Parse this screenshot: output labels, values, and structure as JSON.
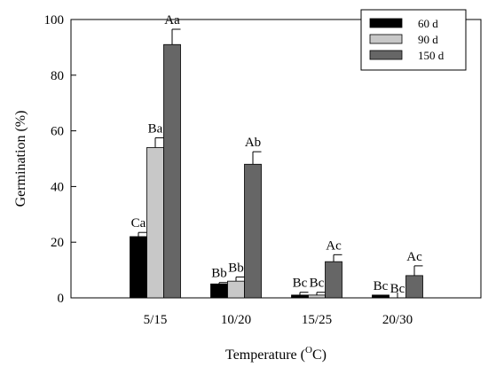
{
  "chart_data": {
    "type": "bar",
    "categories": [
      "5/15",
      "10/20",
      "15/25",
      "20/30"
    ],
    "series": [
      {
        "name": "60 d",
        "color": "#000000",
        "values": [
          22,
          5,
          1,
          1
        ],
        "errors": [
          1.5,
          0.5,
          1,
          0
        ],
        "labels": [
          "Ca",
          "Bb",
          "Bc",
          "Bc"
        ]
      },
      {
        "name": "90 d",
        "color": "#c8c8c8",
        "values": [
          54,
          6,
          1,
          0
        ],
        "errors": [
          3.5,
          1.5,
          1,
          0
        ],
        "labels": [
          "Ba",
          "Bb",
          "Bc",
          "Bc"
        ]
      },
      {
        "name": "150 d",
        "color": "#666666",
        "values": [
          91,
          48,
          13,
          8
        ],
        "errors": [
          5.5,
          4.5,
          2.5,
          3.5
        ],
        "labels": [
          "Aa",
          "Ab",
          "Ac",
          "Ac"
        ]
      }
    ],
    "ylim": [
      0,
      100
    ],
    "yticks": [
      0,
      20,
      40,
      60,
      80,
      100
    ],
    "ylabel": "Germination (%)",
    "xlabel_main": "Temperature (",
    "xlabel_sup": "O",
    "xlabel_end": "C)",
    "legend_position": "top-right",
    "grid": false
  }
}
